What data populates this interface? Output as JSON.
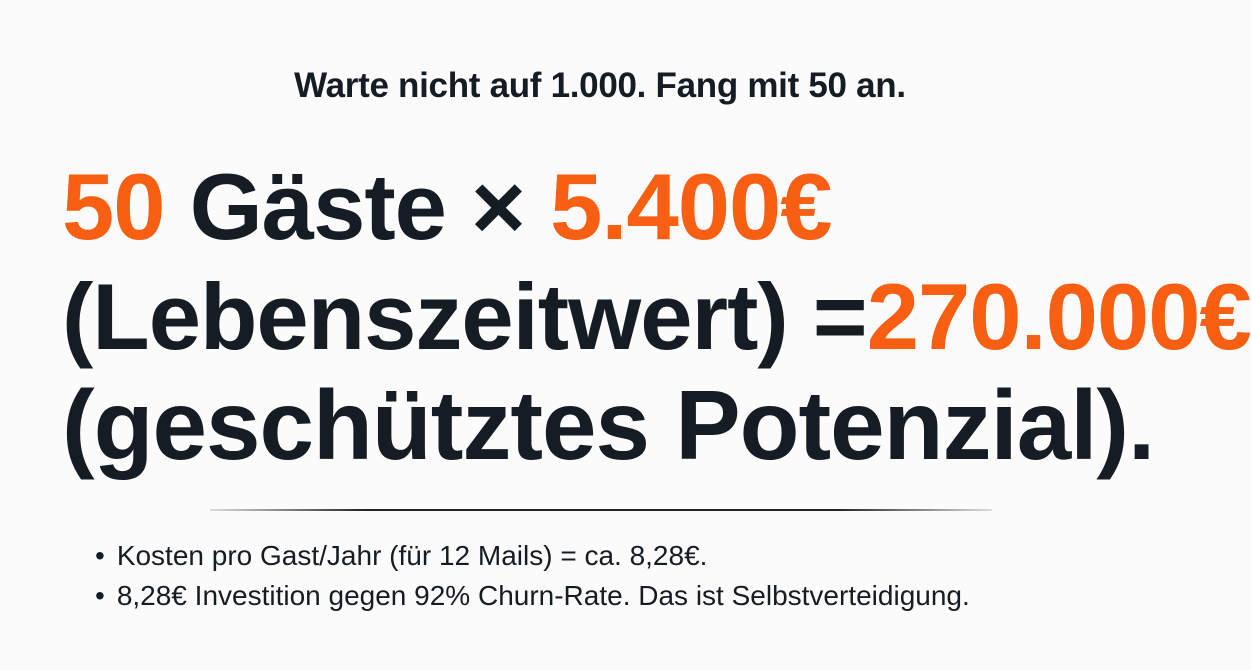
{
  "subtitle": "Warte nicht auf 1.000. Fang mit 50 an.",
  "headline": {
    "line1": {
      "guests": "50",
      "label": " Gäste × ",
      "value": "5.400€"
    },
    "line2": {
      "label": "(Lebenszeitwert) =",
      "value": "270.000€"
    },
    "line3": "(geschütztes Potenzial)."
  },
  "bullets": [
    "Kosten pro Gast/Jahr (für 12 Mails) = ca. 8,28€.",
    "8,28€ Investition gegen 92% Churn-Rate. Das ist Selbstverteidigung."
  ],
  "colors": {
    "accent": "#f85f12",
    "text": "#161c24"
  }
}
